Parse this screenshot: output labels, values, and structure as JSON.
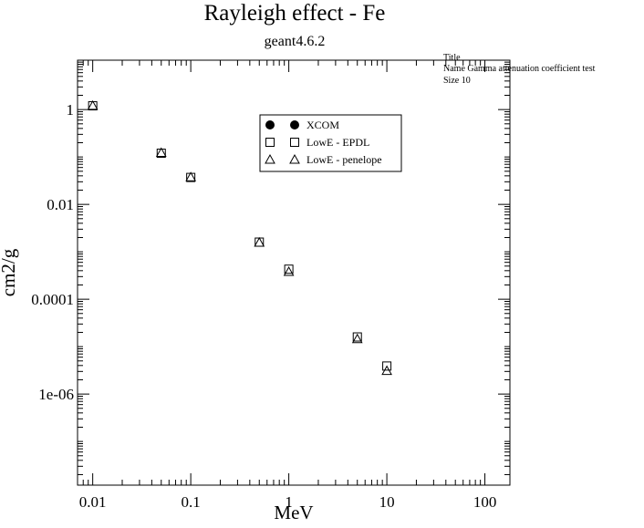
{
  "chart_data": {
    "type": "scatter",
    "title": "Rayleigh effect - Fe",
    "subtitle": "geant4.6.2",
    "xlabel": "MeV",
    "ylabel": "cm2/g",
    "x_scale": "log",
    "y_scale": "log",
    "xlim": [
      0.007,
      180
    ],
    "ylim": [
      1.2e-08,
      11
    ],
    "x_ticks": [
      0.01,
      0.1,
      1,
      10,
      100
    ],
    "x_tick_labels": [
      "0.01",
      "0.1",
      "1",
      "10",
      "100"
    ],
    "y_ticks": [
      1e-06,
      0.0001,
      0.01,
      1
    ],
    "y_tick_labels": [
      "1e-06",
      "0.0001",
      "0.01",
      "1"
    ],
    "grid": false,
    "legend_position": "top-center",
    "series": [
      {
        "name": "XCOM",
        "marker": "filled-circle",
        "x": [],
        "y": []
      },
      {
        "name": "LowE - EPDL",
        "marker": "open-square",
        "x": [
          0.01,
          0.05,
          0.1,
          0.5,
          1,
          5,
          10
        ],
        "y": [
          1.2,
          0.12,
          0.037,
          0.0016,
          0.00043,
          1.6e-05,
          3.9e-06
        ]
      },
      {
        "name": "LowE - penelope",
        "marker": "open-triangle",
        "x": [
          0.01,
          0.05,
          0.1,
          0.5,
          1,
          5,
          10
        ],
        "y": [
          1.21,
          0.123,
          0.0375,
          0.00157,
          0.00038,
          1.45e-05,
          3.1e-06
        ]
      }
    ],
    "stats_box": {
      "lines": [
        "Title",
        "Name  Gamma attenuation coefficient test",
        "Size  10"
      ]
    }
  }
}
